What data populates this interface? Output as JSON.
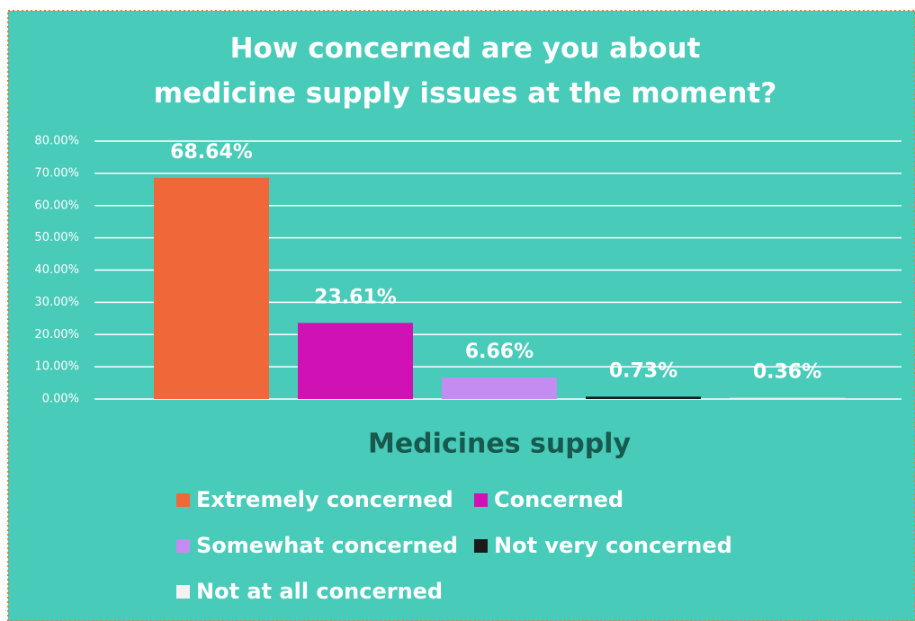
{
  "chart_data": {
    "type": "bar",
    "title": "How concerned are you about medicine supply issues at the moment?",
    "categories": [
      "Medicines supply"
    ],
    "series": [
      {
        "name": "Extremely concerned",
        "color": "#f0683a",
        "values": [
          68.64
        ],
        "value_labels": [
          "68.64%"
        ]
      },
      {
        "name": "Concerned",
        "color": "#d012b4",
        "values": [
          23.61
        ],
        "value_labels": [
          "23.61%"
        ]
      },
      {
        "name": "Somewhat concerned",
        "color": "#c48cf0",
        "values": [
          6.66
        ],
        "value_labels": [
          "6.66%"
        ]
      },
      {
        "name": "Not very concerned",
        "color": "#1a1a1a",
        "values": [
          0.73
        ],
        "value_labels": [
          "0.73%"
        ]
      },
      {
        "name": "Not at all concerned",
        "color": "#f2f2f2",
        "values": [
          0.36
        ],
        "value_labels": [
          "0.36%"
        ]
      }
    ],
    "ylim": [
      0,
      80
    ],
    "yticks": [
      {
        "value": 0,
        "label": "0.00%"
      },
      {
        "value": 10,
        "label": "10.00%"
      },
      {
        "value": 20,
        "label": "20.00%"
      },
      {
        "value": 30,
        "label": "30.00%"
      },
      {
        "value": 40,
        "label": "40.00%"
      },
      {
        "value": 50,
        "label": "50.00%"
      },
      {
        "value": 60,
        "label": "60.00%"
      },
      {
        "value": 70,
        "label": "70.00%"
      },
      {
        "value": 80,
        "label": "80.00%"
      }
    ],
    "grid": true
  }
}
